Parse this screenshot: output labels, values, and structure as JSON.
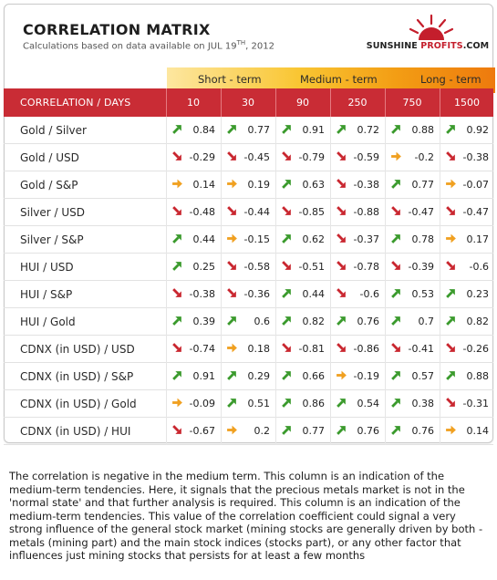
{
  "title": "CORRELATION MATRIX",
  "subtitle_prefix": "Calculations based on data available on  JUL 19",
  "subtitle_sup": "TH",
  "subtitle_suffix": ", 2012",
  "logo": {
    "main": "SUNSHINE ",
    "accent": "PROFITS",
    "suffix": ".COM"
  },
  "terms": [
    "Short - term",
    "Medium - term",
    "Long - term"
  ],
  "header_label": "CORRELATION / DAYS",
  "columns": [
    "10",
    "30",
    "90",
    "250",
    "750",
    "1500"
  ],
  "colors": {
    "up": "#3a9a2c",
    "down": "#c9262f",
    "flat": "#f0a020",
    "header": "#c92c35"
  },
  "rows": [
    {
      "label": "Gold / Silver",
      "cells": [
        {
          "v": "0.84",
          "t": "up"
        },
        {
          "v": "0.77",
          "t": "up"
        },
        {
          "v": "0.91",
          "t": "up"
        },
        {
          "v": "0.72",
          "t": "up"
        },
        {
          "v": "0.88",
          "t": "up"
        },
        {
          "v": "0.92",
          "t": "up"
        }
      ]
    },
    {
      "label": "Gold / USD",
      "cells": [
        {
          "v": "-0.29",
          "t": "down"
        },
        {
          "v": "-0.45",
          "t": "down"
        },
        {
          "v": "-0.79",
          "t": "down"
        },
        {
          "v": "-0.59",
          "t": "down"
        },
        {
          "v": "-0.2",
          "t": "flat"
        },
        {
          "v": "-0.38",
          "t": "down"
        }
      ]
    },
    {
      "label": "Gold / S&P",
      "cells": [
        {
          "v": "0.14",
          "t": "flat"
        },
        {
          "v": "0.19",
          "t": "flat"
        },
        {
          "v": "0.63",
          "t": "up"
        },
        {
          "v": "-0.38",
          "t": "down"
        },
        {
          "v": "0.77",
          "t": "up"
        },
        {
          "v": "-0.07",
          "t": "flat"
        }
      ]
    },
    {
      "label": "Silver / USD",
      "cells": [
        {
          "v": "-0.48",
          "t": "down"
        },
        {
          "v": "-0.44",
          "t": "down"
        },
        {
          "v": "-0.85",
          "t": "down"
        },
        {
          "v": "-0.88",
          "t": "down"
        },
        {
          "v": "-0.47",
          "t": "down"
        },
        {
          "v": "-0.47",
          "t": "down"
        }
      ]
    },
    {
      "label": "Silver / S&P",
      "cells": [
        {
          "v": "0.44",
          "t": "up"
        },
        {
          "v": "-0.15",
          "t": "flat"
        },
        {
          "v": "0.62",
          "t": "up"
        },
        {
          "v": "-0.37",
          "t": "down"
        },
        {
          "v": "0.78",
          "t": "up"
        },
        {
          "v": "0.17",
          "t": "flat"
        }
      ]
    },
    {
      "label": "HUI / USD",
      "cells": [
        {
          "v": "0.25",
          "t": "up"
        },
        {
          "v": "-0.58",
          "t": "down"
        },
        {
          "v": "-0.51",
          "t": "down"
        },
        {
          "v": "-0.78",
          "t": "down"
        },
        {
          "v": "-0.39",
          "t": "down"
        },
        {
          "v": "-0.6",
          "t": "down"
        }
      ]
    },
    {
      "label": "HUI / S&P",
      "cells": [
        {
          "v": "-0.38",
          "t": "down"
        },
        {
          "v": "-0.36",
          "t": "down"
        },
        {
          "v": "0.44",
          "t": "up"
        },
        {
          "v": "-0.6",
          "t": "down"
        },
        {
          "v": "0.53",
          "t": "up"
        },
        {
          "v": "0.23",
          "t": "up"
        }
      ]
    },
    {
      "label": "HUI / Gold",
      "cells": [
        {
          "v": "0.39",
          "t": "up"
        },
        {
          "v": "0.6",
          "t": "up"
        },
        {
          "v": "0.82",
          "t": "up"
        },
        {
          "v": "0.76",
          "t": "up"
        },
        {
          "v": "0.7",
          "t": "up"
        },
        {
          "v": "0.82",
          "t": "up"
        }
      ]
    },
    {
      "label": "CDNX (in USD) / USD",
      "cells": [
        {
          "v": "-0.74",
          "t": "down"
        },
        {
          "v": "0.18",
          "t": "flat"
        },
        {
          "v": "-0.81",
          "t": "down"
        },
        {
          "v": "-0.86",
          "t": "down"
        },
        {
          "v": "-0.41",
          "t": "down"
        },
        {
          "v": "-0.26",
          "t": "down"
        }
      ]
    },
    {
      "label": "CDNX (in USD) / S&P",
      "cells": [
        {
          "v": "0.91",
          "t": "up"
        },
        {
          "v": "0.29",
          "t": "up"
        },
        {
          "v": "0.66",
          "t": "up"
        },
        {
          "v": "-0.19",
          "t": "flat"
        },
        {
          "v": "0.57",
          "t": "up"
        },
        {
          "v": "0.88",
          "t": "up"
        }
      ]
    },
    {
      "label": "CDNX (in USD) / Gold",
      "cells": [
        {
          "v": "-0.09",
          "t": "flat"
        },
        {
          "v": "0.51",
          "t": "up"
        },
        {
          "v": "0.86",
          "t": "up"
        },
        {
          "v": "0.54",
          "t": "up"
        },
        {
          "v": "0.38",
          "t": "up"
        },
        {
          "v": "-0.31",
          "t": "down"
        }
      ]
    },
    {
      "label": "CDNX (in USD) / HUI",
      "cells": [
        {
          "v": "-0.67",
          "t": "down"
        },
        {
          "v": "0.2",
          "t": "flat"
        },
        {
          "v": "0.77",
          "t": "up"
        },
        {
          "v": "0.76",
          "t": "up"
        },
        {
          "v": "0.76",
          "t": "up"
        },
        {
          "v": "0.14",
          "t": "flat"
        }
      ]
    }
  ],
  "note": "The correlation is negative in the medium term. This column is an indication of the medium-term tendencies. Here, it signals that the precious metals market is not in the 'normal state' and that further analysis is required. This column is an indication of the medium-term tendencies. This value of the correlation coefficient could signal a very strong influence of the general stock market (mining stocks are generally driven by both - metals (mining part) and the main stock indices (stocks part), or any other factor that influences just mining stocks that persists for at least a few months"
}
